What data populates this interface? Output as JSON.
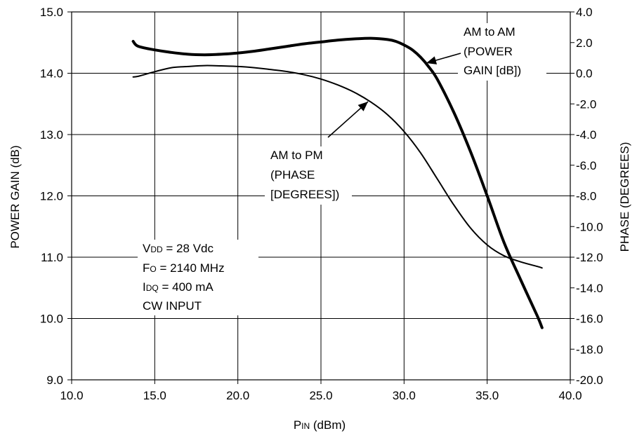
{
  "chart_data": {
    "type": "line",
    "x_axis": {
      "label_main": "P",
      "label_sub": "IN",
      "label_unit": " (dBm)",
      "range": [
        10.0,
        40.0
      ],
      "ticks": [
        "10.0",
        "15.0",
        "20.0",
        "25.0",
        "30.0",
        "35.0",
        "40.0"
      ]
    },
    "y_axis_left": {
      "label": "POWER GAIN (dB)",
      "range": [
        9.0,
        15.0
      ],
      "ticks": [
        "9.0",
        "10.0",
        "11.0",
        "12.0",
        "13.0",
        "14.0",
        "15.0"
      ]
    },
    "y_axis_right": {
      "label": "PHASE (DEGREES)",
      "range": [
        -20.0,
        4.0
      ],
      "ticks": [
        "-20.0",
        "-18.0",
        "-16.0",
        "-14.0",
        "-12.0",
        "-10.0",
        "-8.0",
        "-6.0",
        "-4.0",
        "-2.0",
        "0.0",
        "2.0",
        "4.0"
      ]
    },
    "grid": true,
    "series": [
      {
        "name": "AM to AM (POWER GAIN [dB])",
        "axis": "left",
        "color": "#000000",
        "x": [
          13.7,
          14.0,
          15.0,
          16.0,
          17.0,
          18.0,
          19.0,
          20.0,
          21.0,
          22.0,
          23.0,
          24.0,
          25.0,
          26.0,
          27.0,
          28.0,
          29.0,
          29.5,
          30.0,
          30.5,
          31.0,
          31.5,
          32.0,
          33.0,
          34.0,
          35.0,
          36.0,
          37.0,
          38.0,
          38.3
        ],
        "y": [
          14.52,
          14.44,
          14.38,
          14.34,
          14.31,
          14.3,
          14.31,
          14.33,
          14.36,
          14.4,
          14.44,
          14.48,
          14.51,
          14.54,
          14.56,
          14.57,
          14.55,
          14.52,
          14.46,
          14.38,
          14.26,
          14.1,
          13.9,
          13.36,
          12.72,
          12.0,
          11.25,
          10.64,
          10.05,
          9.85
        ]
      },
      {
        "name": "AM to PM (PHASE [DEGREES])",
        "axis": "right",
        "color": "#000000",
        "x": [
          13.7,
          14.0,
          15.0,
          16.0,
          17.0,
          18.0,
          19.0,
          20.0,
          21.0,
          22.0,
          23.0,
          24.0,
          25.0,
          26.0,
          27.0,
          28.0,
          29.0,
          30.0,
          31.0,
          32.0,
          33.0,
          34.0,
          35.0,
          36.0,
          37.0,
          38.0,
          38.3
        ],
        "y": [
          -0.24,
          -0.2,
          0.1,
          0.36,
          0.44,
          0.5,
          0.48,
          0.44,
          0.36,
          0.24,
          0.1,
          -0.1,
          -0.38,
          -0.76,
          -1.24,
          -1.88,
          -2.7,
          -3.8,
          -5.2,
          -6.9,
          -8.6,
          -10.1,
          -11.2,
          -11.9,
          -12.3,
          -12.6,
          -12.7
        ]
      }
    ],
    "annotations": {
      "am_am": [
        "AM to AM",
        "(POWER",
        "GAIN [dB])"
      ],
      "am_pm": [
        "AM to PM",
        "(PHASE",
        "[DEGREES])"
      ],
      "conditions": [
        {
          "main": "V",
          "sub": "DD",
          "rest": " = 28 Vdc"
        },
        {
          "main": "F",
          "sub": "O",
          "rest": " = 2140 MHz"
        },
        {
          "main": "I",
          "sub": "DQ",
          "rest": " = 400 mA"
        },
        {
          "main": "CW INPUT",
          "sub": "",
          "rest": ""
        }
      ]
    }
  }
}
